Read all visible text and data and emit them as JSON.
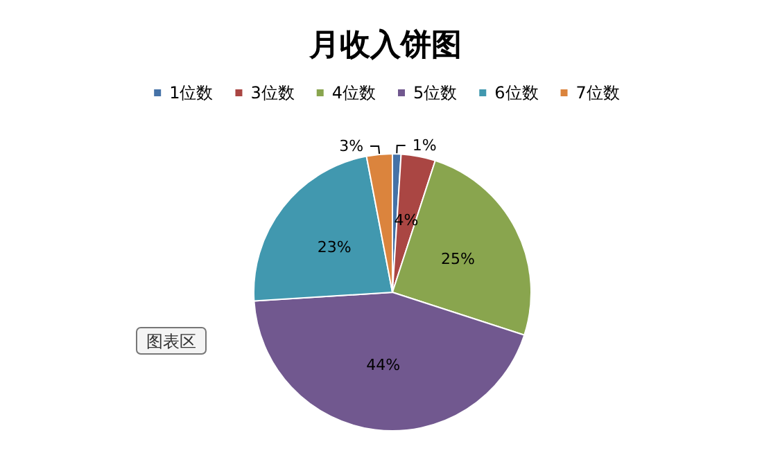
{
  "chart_data": {
    "type": "pie",
    "title": "月收入饼图",
    "categories": [
      "1位数",
      "3位数",
      "4位数",
      "5位数",
      "6位数",
      "7位数"
    ],
    "values": [
      1,
      4,
      25,
      44,
      23,
      3
    ],
    "colors": [
      "#4572a7",
      "#aa4643",
      "#89a54e",
      "#71588f",
      "#4198af",
      "#db843d"
    ],
    "value_labels": [
      "1%",
      "4%",
      "25%",
      "44%",
      "23%",
      "3%"
    ],
    "legend": "top",
    "annotations": [
      "图表区"
    ]
  }
}
